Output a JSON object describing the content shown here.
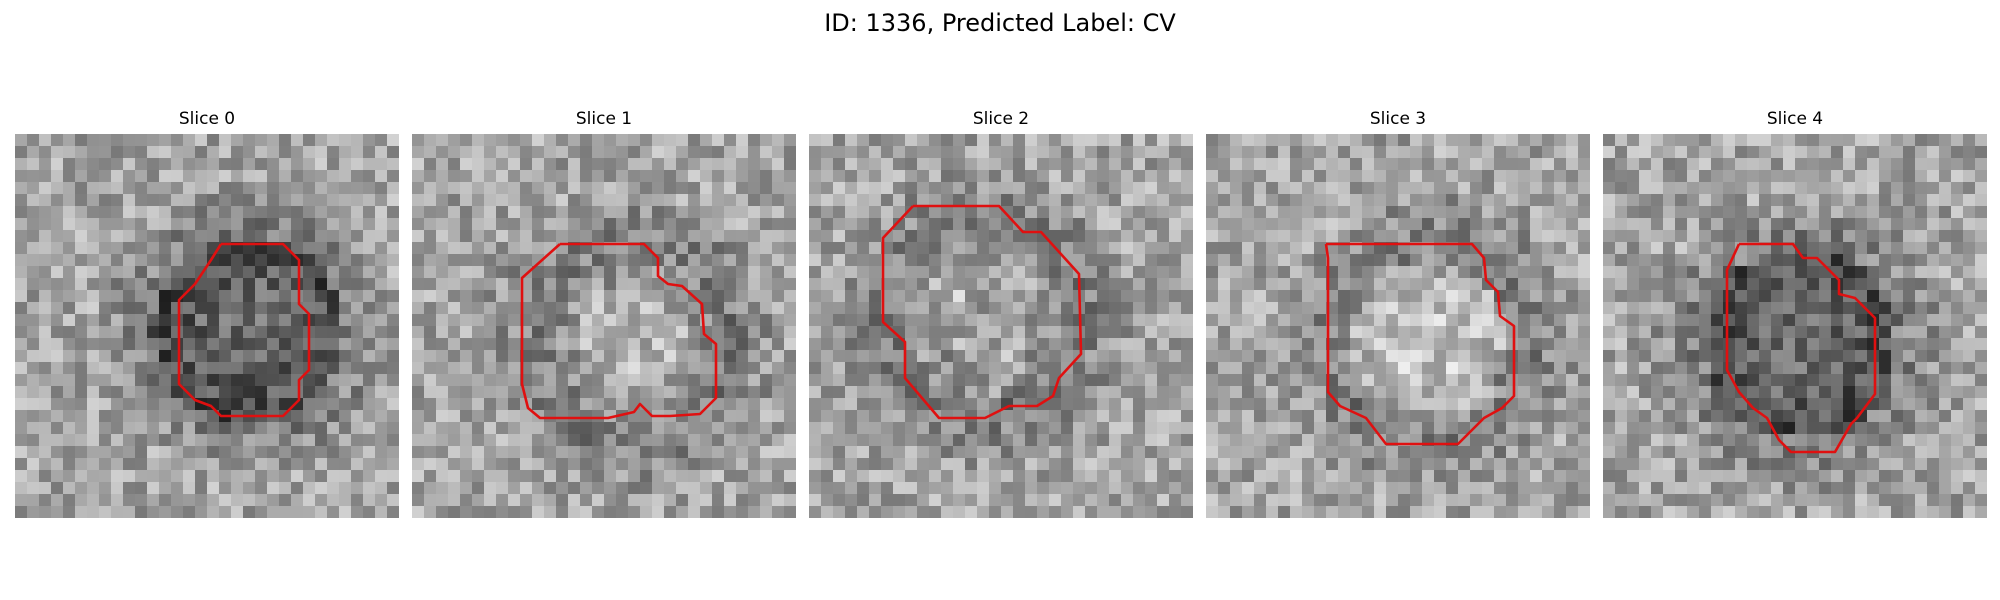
{
  "figure": {
    "title": "ID: 1336, Predicted Label: CV"
  },
  "slices": [
    {
      "label": "Slice 0",
      "contour_color": "#e01010",
      "region": "dark"
    },
    {
      "label": "Slice 1",
      "contour_color": "#e01010",
      "region": "ring"
    },
    {
      "label": "Slice 2",
      "contour_color": "#e01010",
      "region": "mottled"
    },
    {
      "label": "Slice 3",
      "contour_color": "#e01010",
      "region": "bright"
    },
    {
      "label": "Slice 4",
      "contour_color": "#e01010",
      "region": "dark"
    }
  ]
}
